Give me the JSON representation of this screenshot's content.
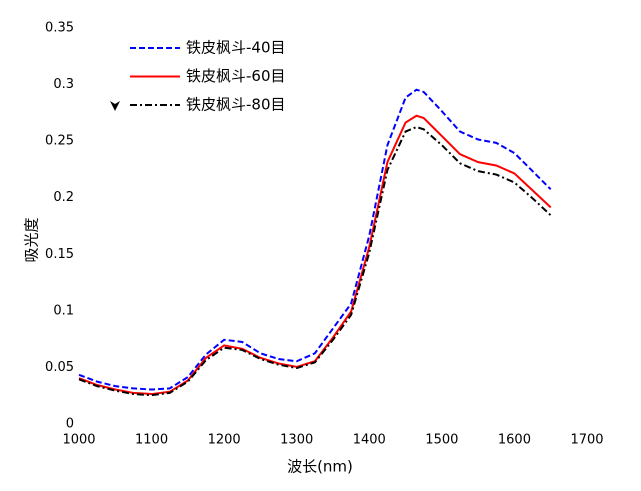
{
  "chart_data": {
    "type": "line",
    "x_label": "波长(nm)",
    "y_label": "吸光度",
    "x": [
      1000,
      1025,
      1050,
      1075,
      1100,
      1125,
      1150,
      1175,
      1200,
      1225,
      1250,
      1275,
      1300,
      1325,
      1350,
      1375,
      1400,
      1425,
      1450,
      1465,
      1475,
      1500,
      1525,
      1550,
      1575,
      1600,
      1625,
      1650
    ],
    "series": [
      {
        "name": "铁皮枫斗-40目",
        "color": "#0000ff",
        "linestyle": "dashed",
        "values": [
          0.047,
          0.041,
          0.037,
          0.035,
          0.034,
          0.035,
          0.045,
          0.065,
          0.078,
          0.076,
          0.066,
          0.061,
          0.059,
          0.066,
          0.088,
          0.11,
          0.17,
          0.25,
          0.292,
          0.299,
          0.297,
          0.28,
          0.262,
          0.255,
          0.252,
          0.243,
          0.227,
          0.211
        ]
      },
      {
        "name": "铁皮枫斗-60目",
        "color": "#ff0000",
        "linestyle": "solid",
        "values": [
          0.044,
          0.038,
          0.034,
          0.031,
          0.03,
          0.032,
          0.042,
          0.062,
          0.073,
          0.07,
          0.062,
          0.057,
          0.054,
          0.059,
          0.08,
          0.103,
          0.16,
          0.235,
          0.27,
          0.276,
          0.274,
          0.258,
          0.242,
          0.235,
          0.232,
          0.225,
          0.21,
          0.195
        ]
      },
      {
        "name": "铁皮枫斗-80目",
        "color": "#000000",
        "linestyle": "dashdot",
        "values": [
          0.043,
          0.037,
          0.033,
          0.03,
          0.029,
          0.031,
          0.041,
          0.06,
          0.071,
          0.069,
          0.061,
          0.056,
          0.053,
          0.058,
          0.078,
          0.1,
          0.155,
          0.228,
          0.262,
          0.266,
          0.264,
          0.25,
          0.234,
          0.227,
          0.224,
          0.217,
          0.203,
          0.188
        ]
      }
    ],
    "xlim": [
      1000,
      1700
    ],
    "xticks": [
      1000,
      1100,
      1200,
      1300,
      1400,
      1500,
      1600,
      1700
    ],
    "ylim": [
      0,
      0.35
    ],
    "yticks": [
      0,
      0.05,
      0.1,
      0.15,
      0.2,
      0.25,
      0.3,
      0.35
    ],
    "grid": false,
    "legend": "upper left"
  }
}
